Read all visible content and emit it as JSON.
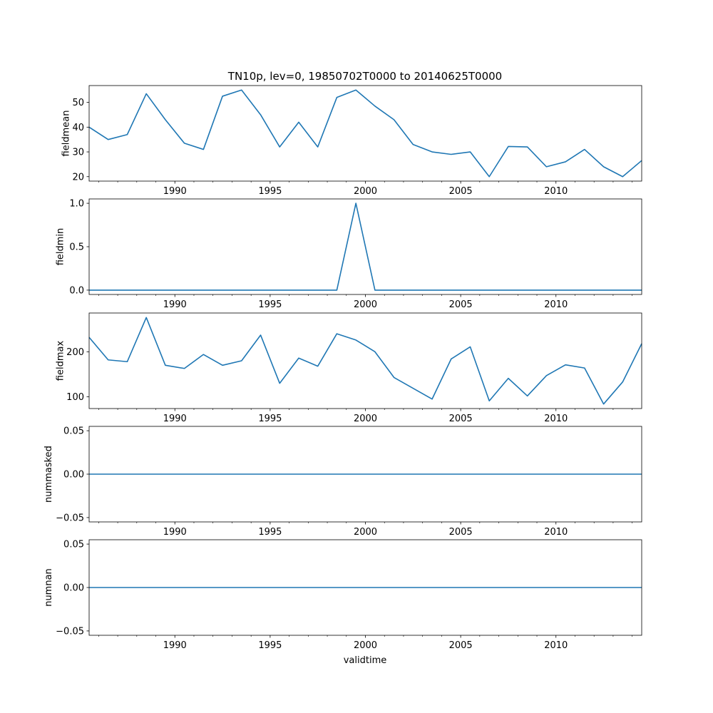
{
  "figure": {
    "title": "TN10p, lev=0, 19850702T0000 to 20140625T0000",
    "xlabel": "validtime"
  },
  "chart_data": [
    {
      "type": "line",
      "ylabel": "fieldmean",
      "x": [
        1985.5,
        1986.5,
        1987.5,
        1988.5,
        1989.5,
        1990.5,
        1991.5,
        1992.5,
        1993.5,
        1994.5,
        1995.5,
        1996.5,
        1997.5,
        1998.5,
        1999.5,
        2000.5,
        2001.5,
        2002.5,
        2003.5,
        2004.5,
        2005.5,
        2006.5,
        2007.5,
        2008.5,
        2009.5,
        2010.5,
        2011.5,
        2012.5,
        2013.5,
        2014.5
      ],
      "values": [
        40,
        35,
        37,
        53.5,
        43,
        33.5,
        31,
        52.5,
        55,
        45,
        32,
        42,
        32,
        52,
        55,
        48.5,
        43,
        33,
        30,
        29,
        30,
        20,
        32.2,
        32,
        24,
        26,
        31,
        24,
        20,
        26.5
      ],
      "ylim": [
        18.2,
        56.8
      ],
      "yticks": [
        20,
        30,
        40,
        50
      ],
      "ytick_labels": [
        "20",
        "30",
        "40",
        "50"
      ],
      "xlim": [
        1985.5,
        2014.5
      ],
      "xticks": [
        1990,
        1995,
        2000,
        2005,
        2010
      ],
      "xtick_labels": [
        "1990",
        "1995",
        "2000",
        "2005",
        "2010"
      ],
      "color": "#1f77b4"
    },
    {
      "type": "line",
      "ylabel": "fieldmin",
      "x": [
        1985.5,
        1986.5,
        1987.5,
        1988.5,
        1989.5,
        1990.5,
        1991.5,
        1992.5,
        1993.5,
        1994.5,
        1995.5,
        1996.5,
        1997.5,
        1998.5,
        1999.5,
        2000.5,
        2001.5,
        2002.5,
        2003.5,
        2004.5,
        2005.5,
        2006.5,
        2007.5,
        2008.5,
        2009.5,
        2010.5,
        2011.5,
        2012.5,
        2013.5,
        2014.5
      ],
      "values": [
        0,
        0,
        0,
        0,
        0,
        0,
        0,
        0,
        0,
        0,
        0,
        0,
        0,
        0,
        1,
        0,
        0,
        0,
        0,
        0,
        0,
        0,
        0,
        0,
        0,
        0,
        0,
        0,
        0,
        0
      ],
      "ylim": [
        -0.05,
        1.05
      ],
      "yticks": [
        0,
        0.5,
        1
      ],
      "ytick_labels": [
        "0.0",
        "0.5",
        "1.0"
      ],
      "xlim": [
        1985.5,
        2014.5
      ],
      "xticks": [
        1990,
        1995,
        2000,
        2005,
        2010
      ],
      "xtick_labels": [
        "1990",
        "1995",
        "2000",
        "2005",
        "2010"
      ],
      "color": "#1f77b4"
    },
    {
      "type": "line",
      "ylabel": "fieldmax",
      "x": [
        1985.5,
        1986.5,
        1987.5,
        1988.5,
        1989.5,
        1990.5,
        1991.5,
        1992.5,
        1993.5,
        1994.5,
        1995.5,
        1996.5,
        1997.5,
        1998.5,
        1999.5,
        2000.5,
        2001.5,
        2002.5,
        2003.5,
        2004.5,
        2005.5,
        2006.5,
        2007.5,
        2008.5,
        2009.5,
        2010.5,
        2011.5,
        2012.5,
        2013.5,
        2014.5
      ],
      "values": [
        232,
        182,
        178,
        276,
        170,
        163,
        194,
        170,
        180,
        237,
        130,
        186,
        168,
        240,
        226,
        200,
        143,
        119,
        95,
        184,
        211,
        91,
        141,
        102,
        147,
        171,
        164,
        84,
        133,
        218
      ],
      "ylim": [
        74,
        286
      ],
      "yticks": [
        100,
        200
      ],
      "ytick_labels": [
        "100",
        "200"
      ],
      "xlim": [
        1985.5,
        2014.5
      ],
      "xticks": [
        1990,
        1995,
        2000,
        2005,
        2010
      ],
      "xtick_labels": [
        "1990",
        "1995",
        "2000",
        "2005",
        "2010"
      ],
      "color": "#1f77b4"
    },
    {
      "type": "line",
      "ylabel": "nummasked",
      "x": [
        1985.5,
        1986.5,
        1987.5,
        1988.5,
        1989.5,
        1990.5,
        1991.5,
        1992.5,
        1993.5,
        1994.5,
        1995.5,
        1996.5,
        1997.5,
        1998.5,
        1999.5,
        2000.5,
        2001.5,
        2002.5,
        2003.5,
        2004.5,
        2005.5,
        2006.5,
        2007.5,
        2008.5,
        2009.5,
        2010.5,
        2011.5,
        2012.5,
        2013.5,
        2014.5
      ],
      "values": [
        0,
        0,
        0,
        0,
        0,
        0,
        0,
        0,
        0,
        0,
        0,
        0,
        0,
        0,
        0,
        0,
        0,
        0,
        0,
        0,
        0,
        0,
        0,
        0,
        0,
        0,
        0,
        0,
        0,
        0
      ],
      "ylim": [
        -0.055,
        0.055
      ],
      "yticks": [
        -0.05,
        0,
        0.05
      ],
      "ytick_labels": [
        "−0.05",
        "0.00",
        "0.05"
      ],
      "xlim": [
        1985.5,
        2014.5
      ],
      "xticks": [
        1990,
        1995,
        2000,
        2005,
        2010
      ],
      "xtick_labels": [
        "1990",
        "1995",
        "2000",
        "2005",
        "2010"
      ],
      "color": "#1f77b4"
    },
    {
      "type": "line",
      "ylabel": "numnan",
      "x": [
        1985.5,
        1986.5,
        1987.5,
        1988.5,
        1989.5,
        1990.5,
        1991.5,
        1992.5,
        1993.5,
        1994.5,
        1995.5,
        1996.5,
        1997.5,
        1998.5,
        1999.5,
        2000.5,
        2001.5,
        2002.5,
        2003.5,
        2004.5,
        2005.5,
        2006.5,
        2007.5,
        2008.5,
        2009.5,
        2010.5,
        2011.5,
        2012.5,
        2013.5,
        2014.5
      ],
      "values": [
        0,
        0,
        0,
        0,
        0,
        0,
        0,
        0,
        0,
        0,
        0,
        0,
        0,
        0,
        0,
        0,
        0,
        0,
        0,
        0,
        0,
        0,
        0,
        0,
        0,
        0,
        0,
        0,
        0,
        0
      ],
      "ylim": [
        -0.055,
        0.055
      ],
      "yticks": [
        -0.05,
        0,
        0.05
      ],
      "ytick_labels": [
        "−0.05",
        "0.00",
        "0.05"
      ],
      "xlim": [
        1985.5,
        2014.5
      ],
      "xticks": [
        1990,
        1995,
        2000,
        2005,
        2010
      ],
      "xtick_labels": [
        "1990",
        "1995",
        "2000",
        "2005",
        "2010"
      ],
      "color": "#1f77b4"
    }
  ]
}
